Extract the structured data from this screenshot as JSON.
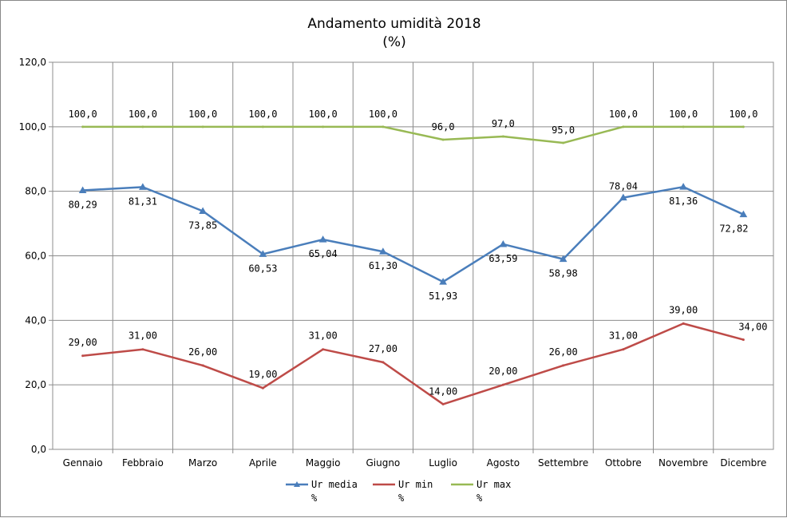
{
  "chart_data": {
    "type": "line",
    "title": "Andamento umidità 2018",
    "subtitle": "(%)",
    "categories": [
      "Gennaio",
      "Febbraio",
      "Marzo",
      "Aprile",
      "Maggio",
      "Giugno",
      "Luglio",
      "Agosto",
      "Settembre",
      "Ottobre",
      "Novembre",
      "Dicembre"
    ],
    "ylim": [
      0,
      120
    ],
    "yticks": [
      "0,0",
      "20,0",
      "40,0",
      "60,0",
      "80,0",
      "100,0",
      "120,0"
    ],
    "grid": true,
    "legend_position": "bottom",
    "series": [
      {
        "name": "Ur media",
        "name_line2": "%",
        "color": "#4a7ebb",
        "marker": "triangle",
        "values": [
          80.29,
          81.31,
          73.85,
          60.53,
          65.04,
          61.3,
          51.93,
          63.59,
          58.98,
          78.04,
          81.36,
          72.82
        ],
        "labels": [
          "80,29",
          "81,31",
          "73,85",
          "60,53",
          "65,04",
          "61,30",
          "51,93",
          "63,59",
          "58,98",
          "78,04",
          "81,36",
          "72,82"
        ]
      },
      {
        "name": "Ur min",
        "name_line2": "%",
        "color": "#be4b48",
        "marker": "none",
        "values": [
          29,
          31,
          26,
          19,
          31,
          27,
          14,
          20,
          26,
          31,
          39,
          34
        ],
        "labels": [
          "29,00",
          "31,00",
          "26,00",
          "19,00",
          "31,00",
          "27,00",
          "14,00",
          "20,00",
          "26,00",
          "31,00",
          "39,00",
          "34,00"
        ]
      },
      {
        "name": "Ur max",
        "name_line2": "%",
        "color": "#98b954",
        "marker": "none",
        "values": [
          100,
          100,
          100,
          100,
          100,
          100,
          96,
          97,
          95,
          100,
          100,
          100
        ],
        "labels": [
          "100,0",
          "100,0",
          "100,0",
          "100,0",
          "100,0",
          "100,0",
          "96,0",
          "97,0",
          "95,0",
          "100,0",
          "100,0",
          "100,0"
        ]
      }
    ]
  }
}
